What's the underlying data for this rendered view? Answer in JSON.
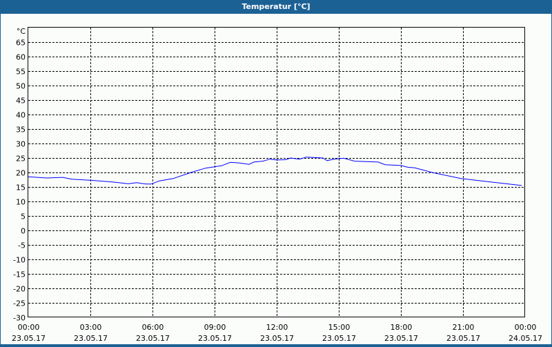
{
  "window": {
    "title": "Temperatur [°C]"
  },
  "chart_data": {
    "type": "line",
    "title": "Temperatur [°C]",
    "ylabel": "°C",
    "ylim": [
      -30,
      70
    ],
    "yticks": [
      -30,
      -25,
      -20,
      -15,
      -10,
      -5,
      0,
      5,
      10,
      15,
      20,
      25,
      30,
      35,
      40,
      45,
      50,
      55,
      60,
      65
    ],
    "xticks": [
      {
        "time": "00:00",
        "date": "23.05.17"
      },
      {
        "time": "03:00",
        "date": "23.05.17"
      },
      {
        "time": "06:00",
        "date": "23.05.17"
      },
      {
        "time": "09:00",
        "date": "23.05.17"
      },
      {
        "time": "12:00",
        "date": "23.05.17"
      },
      {
        "time": "15:00",
        "date": "23.05.17"
      },
      {
        "time": "18:00",
        "date": "23.05.17"
      },
      {
        "time": "21:00",
        "date": "23.05.17"
      },
      {
        "time": "00:00",
        "date": "24.05.17"
      }
    ],
    "xlim": [
      "23.05.17 00:00",
      "24.05.17 00:00"
    ],
    "grid": true,
    "series": [
      {
        "color": "#0000ff",
        "x": [
          "00:00",
          "00:54",
          "01:40",
          "02:06",
          "03:00",
          "04:06",
          "04:50",
          "05:14",
          "05:40",
          "05:56",
          "06:20",
          "07:00",
          "07:54",
          "08:34",
          "09:06",
          "09:20",
          "09:46",
          "10:10",
          "10:40",
          "10:54",
          "11:20",
          "11:40",
          "12:00",
          "12:26",
          "12:40",
          "13:06",
          "13:26",
          "14:14",
          "14:26",
          "14:46",
          "15:14",
          "15:46",
          "16:54",
          "17:14",
          "18:00",
          "18:20",
          "18:40",
          "19:34",
          "20:54",
          "22:00",
          "23:06",
          "23:50"
        ],
        "y": [
          18.5,
          18.1,
          18.3,
          17.7,
          17.3,
          16.7,
          16.1,
          16.5,
          16.0,
          16.0,
          17.1,
          17.9,
          20.1,
          21.5,
          22.1,
          22.3,
          23.5,
          23.3,
          22.8,
          23.6,
          23.9,
          24.6,
          24.3,
          24.4,
          25.0,
          24.6,
          25.3,
          25.0,
          24.1,
          24.6,
          24.9,
          23.9,
          23.6,
          22.7,
          22.4,
          21.8,
          21.6,
          19.9,
          17.9,
          17.0,
          16.1,
          15.5
        ]
      }
    ]
  }
}
